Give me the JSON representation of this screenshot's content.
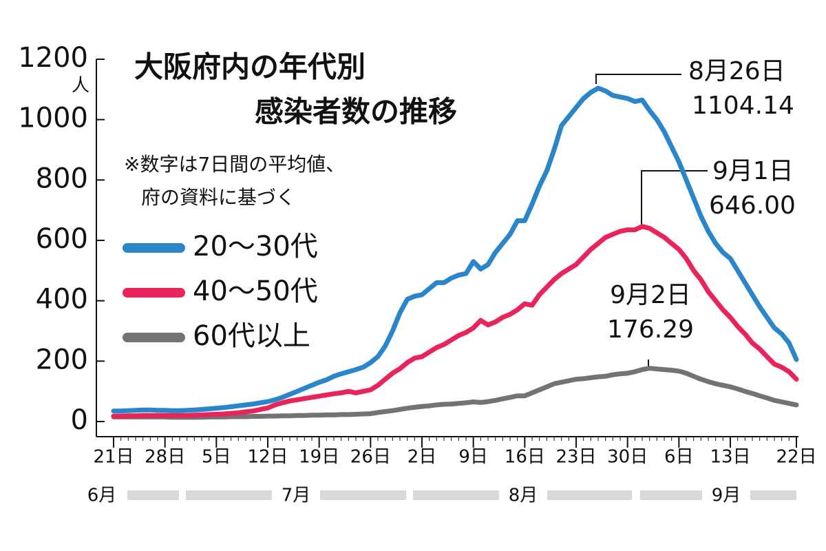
{
  "chart_data": {
    "type": "line",
    "title_lines": [
      "大阪府内の年代別",
      "感染者数の推移"
    ],
    "note_lines": [
      "※数字は7日間の平均値、",
      "府の資料に基づく"
    ],
    "y_unit": "人",
    "categories": [
      "21日",
      null,
      null,
      null,
      null,
      null,
      null,
      "28日",
      null,
      null,
      null,
      null,
      null,
      null,
      "5日",
      null,
      null,
      null,
      null,
      null,
      null,
      "12日",
      null,
      null,
      null,
      null,
      null,
      null,
      "19日",
      null,
      null,
      null,
      null,
      null,
      null,
      "26日",
      null,
      null,
      null,
      null,
      null,
      null,
      "2日",
      null,
      null,
      null,
      null,
      null,
      null,
      "9日",
      null,
      null,
      null,
      null,
      null,
      null,
      "16日",
      null,
      null,
      null,
      null,
      null,
      null,
      "23日",
      null,
      null,
      null,
      null,
      null,
      null,
      "30日",
      null,
      null,
      null,
      null,
      null,
      null,
      "6日",
      null,
      null,
      null,
      null,
      null,
      null,
      "13日",
      null,
      null,
      null,
      null,
      null,
      null,
      null,
      null,
      "22日"
    ],
    "month_labels": [
      "6月",
      "7月",
      "8月",
      "9月"
    ],
    "ylim": [
      0,
      1200
    ],
    "yticks": [
      0,
      200,
      400,
      600,
      800,
      1000,
      1200
    ],
    "series": [
      {
        "name": "20～30代",
        "color": "#2a86c8",
        "values": [
          35,
          35,
          36,
          37,
          38,
          38,
          37,
          37,
          36,
          36,
          37,
          38,
          40,
          42,
          44,
          46,
          49,
          52,
          55,
          58,
          62,
          66,
          72,
          80,
          90,
          100,
          110,
          120,
          130,
          138,
          150,
          158,
          165,
          172,
          180,
          195,
          215,
          250,
          300,
          360,
          405,
          415,
          420,
          440,
          460,
          460,
          475,
          485,
          490,
          530,
          505,
          520,
          560,
          590,
          620,
          665,
          665,
          720,
          780,
          830,
          900,
          980,
          1010,
          1040,
          1070,
          1090,
          1104.14,
          1095,
          1080,
          1075,
          1070,
          1060,
          1065,
          1030,
          1000,
          960,
          910,
          860,
          800,
          740,
          680,
          630,
          590,
          560,
          540,
          500,
          460,
          420,
          380,
          345,
          310,
          290,
          260,
          205
        ]
      },
      {
        "name": "40～50代",
        "color": "#e8245a",
        "values": [
          18,
          18,
          19,
          19,
          20,
          20,
          20,
          20,
          20,
          20,
          20,
          21,
          22,
          23,
          24,
          25,
          27,
          29,
          32,
          35,
          40,
          45,
          55,
          62,
          68,
          72,
          76,
          80,
          84,
          88,
          92,
          95,
          100,
          95,
          100,
          105,
          120,
          140,
          160,
          175,
          195,
          210,
          215,
          230,
          245,
          255,
          270,
          285,
          295,
          310,
          335,
          320,
          330,
          345,
          355,
          370,
          390,
          385,
          420,
          445,
          470,
          490,
          505,
          520,
          545,
          570,
          590,
          610,
          620,
          630,
          635,
          635,
          646,
          640,
          625,
          610,
          590,
          570,
          540,
          500,
          470,
          430,
          400,
          370,
          345,
          315,
          290,
          260,
          240,
          215,
          190,
          180,
          165,
          140
        ]
      },
      {
        "name": "60代以上",
        "color": "#737373",
        "values": [
          15,
          15,
          15,
          15,
          15,
          15,
          15,
          15,
          14,
          14,
          14,
          14,
          14,
          15,
          15,
          15,
          16,
          16,
          16,
          17,
          17,
          18,
          18,
          19,
          19,
          20,
          20,
          21,
          21,
          22,
          22,
          23,
          23,
          24,
          25,
          26,
          30,
          33,
          36,
          40,
          44,
          47,
          50,
          52,
          55,
          57,
          58,
          60,
          62,
          65,
          63,
          66,
          70,
          75,
          80,
          85,
          85,
          95,
          105,
          115,
          125,
          130,
          135,
          140,
          142,
          145,
          148,
          150,
          155,
          158,
          160,
          165,
          172,
          176.29,
          174,
          172,
          170,
          167,
          160,
          150,
          140,
          132,
          125,
          120,
          115,
          108,
          100,
          93,
          85,
          78,
          70,
          65,
          60,
          55
        ]
      }
    ],
    "annotations": [
      {
        "date": "8月26日",
        "value": "1104.14"
      },
      {
        "date": "9月1日",
        "value": "646.00"
      },
      {
        "date": "9月2日",
        "value": "176.29"
      }
    ]
  }
}
